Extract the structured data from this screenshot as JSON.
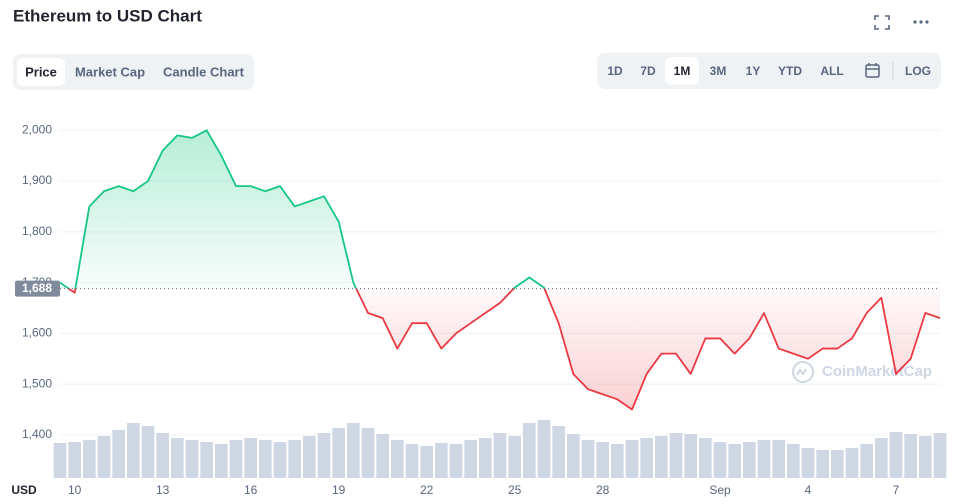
{
  "chart_data": {
    "type": "line",
    "title": "Ethereum to USD Chart",
    "currency": "USD",
    "watermark": "CoinMarketCap",
    "categories": [
      null,
      "10",
      null,
      null,
      null,
      null,
      null,
      "13",
      null,
      null,
      null,
      null,
      null,
      "16",
      null,
      null,
      null,
      null,
      null,
      "19",
      null,
      null,
      null,
      null,
      null,
      "22",
      null,
      null,
      null,
      null,
      null,
      "25",
      null,
      null,
      null,
      null,
      null,
      "28",
      null,
      null,
      null,
      null,
      null,
      null,
      null,
      "Sep",
      null,
      null,
      null,
      null,
      null,
      "4",
      null,
      null,
      null,
      null,
      null,
      "7",
      null,
      null,
      null
    ],
    "series": [
      {
        "name": "Price",
        "values": [
          1700,
          1680,
          1850,
          1880,
          1890,
          1880,
          1900,
          1960,
          1990,
          1985,
          2000,
          1950,
          1890,
          1890,
          1880,
          1890,
          1850,
          1860,
          1870,
          1820,
          1700,
          1640,
          1630,
          1570,
          1620,
          1620,
          1570,
          1600,
          1620,
          1640,
          1660,
          1690,
          1710,
          1690,
          1620,
          1520,
          1490,
          1480,
          1470,
          1450,
          1520,
          1560,
          1560,
          1520,
          1590,
          1590,
          1560,
          1590,
          1640,
          1570,
          1560,
          1550,
          1570,
          1570,
          1590,
          1640,
          1670,
          1520,
          1550,
          1640,
          1630
        ]
      }
    ],
    "volume": [
      35,
      36,
      38,
      42,
      48,
      55,
      52,
      45,
      40,
      38,
      36,
      34,
      38,
      40,
      38,
      36,
      38,
      42,
      45,
      50,
      55,
      50,
      44,
      38,
      34,
      32,
      35,
      34,
      38,
      40,
      45,
      42,
      55,
      58,
      52,
      44,
      38,
      36,
      34,
      38,
      40,
      42,
      45,
      44,
      40,
      36,
      34,
      36,
      38,
      38,
      34,
      30,
      28,
      28,
      30,
      34,
      40,
      46,
      44,
      42,
      45
    ],
    "baseline": {
      "value": 1688,
      "label": "1,688"
    },
    "ylim": [
      1315,
      2040
    ],
    "yticks": [
      {
        "value": 1400,
        "label": "1,400"
      },
      {
        "value": 1500,
        "label": "1,500"
      },
      {
        "value": 1600,
        "label": "1,600"
      },
      {
        "value": 1700,
        "label": "1,700"
      },
      {
        "value": 1800,
        "label": "1,800"
      },
      {
        "value": 1900,
        "label": "1,900"
      },
      {
        "value": 2000,
        "label": "2,000"
      }
    ],
    "grid": true,
    "up_color": "#16c784",
    "down_color": "#ea3943",
    "volume_color": "#cfd6e4"
  },
  "ui": {
    "tabs": [
      "Price",
      "Market Cap",
      "Candle Chart"
    ],
    "ranges": [
      "1D",
      "7D",
      "1M",
      "3M",
      "1Y",
      "YTD",
      "ALL"
    ],
    "scale": "LOG"
  }
}
